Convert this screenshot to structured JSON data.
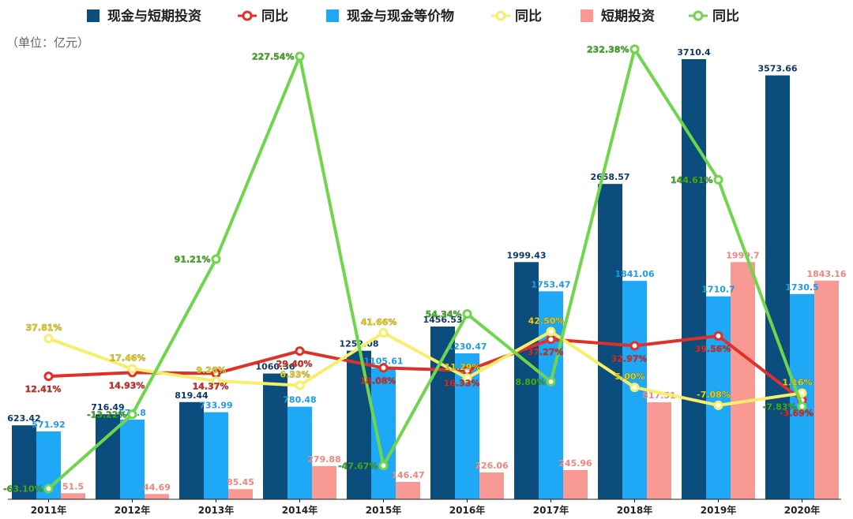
{
  "unit_label": "（单位：亿元）",
  "colors": {
    "cash_short_bar": "#0b4d7c",
    "cash_eq_bar": "#1ea8f5",
    "short_inv_bar": "#f89a93",
    "cash_short_line": "#e0302a",
    "cash_eq_line": "#f7ee6a",
    "short_inv_line": "#6fd64b"
  },
  "chart_data": {
    "type": "bar",
    "categories": [
      "2011年",
      "2012年",
      "2013年",
      "2014年",
      "2015年",
      "2016年",
      "2017年",
      "2018年",
      "2019年",
      "2020年"
    ],
    "legend": [
      {
        "kind": "bar",
        "name": "现金与短期投资",
        "color": "#0b4d7c"
      },
      {
        "kind": "line",
        "name": "同比",
        "color": "#e0302a"
      },
      {
        "kind": "bar",
        "name": "现金与现金等价物",
        "color": "#1ea8f5"
      },
      {
        "kind": "line",
        "name": "同比",
        "color": "#f7ee6a"
      },
      {
        "kind": "bar",
        "name": "短期投资",
        "color": "#f89a93"
      },
      {
        "kind": "line",
        "name": "同比",
        "color": "#6fd64b"
      }
    ],
    "bar_series": [
      {
        "name": "现金与短期投资",
        "color": "#0b4d7c",
        "label_color": "#0b3a66",
        "values": [
          623.42,
          716.49,
          819.44,
          1060.36,
          1252.08,
          1456.53,
          1999.43,
          2658.57,
          3710.4,
          3573.66
        ],
        "labels": [
          "623.42",
          "716.49",
          "819.44",
          "1060.36",
          "1252.08",
          "1456.53",
          "1999.43",
          "2658.57",
          "3710.4",
          "3573.66"
        ]
      },
      {
        "name": "现金与现金等价物",
        "color": "#1ea8f5",
        "label_color": "#1e9be6",
        "values": [
          571.92,
          671.8,
          733.99,
          780.48,
          1105.61,
          1230.47,
          1753.47,
          1841.06,
          1710.7,
          1730.5
        ],
        "labels": [
          "571.92",
          "671.8",
          "733.99",
          "780.48",
          "1105.61",
          "1230.47",
          "1753.47",
          "1841.06",
          "1710.7",
          "1730.5"
        ]
      },
      {
        "name": "短期投资",
        "color": "#f89a93",
        "label_color": "#f0857c",
        "values": [
          51.5,
          44.69,
          85.45,
          279.88,
          146.47,
          226.06,
          245.96,
          817.51,
          1999.7,
          1843.16
        ],
        "labels": [
          "51.5",
          "44.69",
          "85.45",
          "279.88",
          "146.47",
          "226.06",
          "245.96",
          "817.51",
          "1999.7",
          "1843.16"
        ]
      }
    ],
    "line_series": [
      {
        "name": "同比",
        "of": "现金与短期投资",
        "color": "#e0302a",
        "label_color": "#d92b24",
        "values": [
          12.41,
          14.93,
          14.37,
          29.4,
          18.08,
          16.33,
          37.27,
          32.97,
          39.56,
          -3.69
        ],
        "labels": [
          "12.41%",
          "14.93%",
          "14.37%",
          "29.40%",
          "18.08%",
          "16.33%",
          "37.27%",
          "32.97%",
          "39.56%",
          "-3.69%"
        ]
      },
      {
        "name": "同比",
        "of": "现金与现金等价物",
        "color": "#f7ee6a",
        "label_color": "#e8d20c",
        "values": [
          37.81,
          17.46,
          9.26,
          6.33,
          41.66,
          11.29,
          42.5,
          5.0,
          -7.08,
          1.16
        ],
        "labels": [
          "37.81%",
          "17.46%",
          "9.26%",
          "6.33%",
          "41.66%",
          "11.29%",
          "42.50%",
          "5.00%",
          "-7.08%",
          "1.16%"
        ]
      },
      {
        "name": "同比",
        "of": "短期投资",
        "color": "#6fd64b",
        "label_color": "#3fae1c",
        "values": [
          -63.1,
          -13.22,
          91.21,
          227.54,
          -47.67,
          54.34,
          8.8,
          232.38,
          144.61,
          -7.83
        ],
        "labels": [
          "-63.10%",
          "-13.22%",
          "91.21%",
          "227.54%",
          "-47.67%",
          "54.34%",
          "8.80%",
          "232.38%",
          "144.61%",
          "-7.83%"
        ]
      }
    ]
  }
}
